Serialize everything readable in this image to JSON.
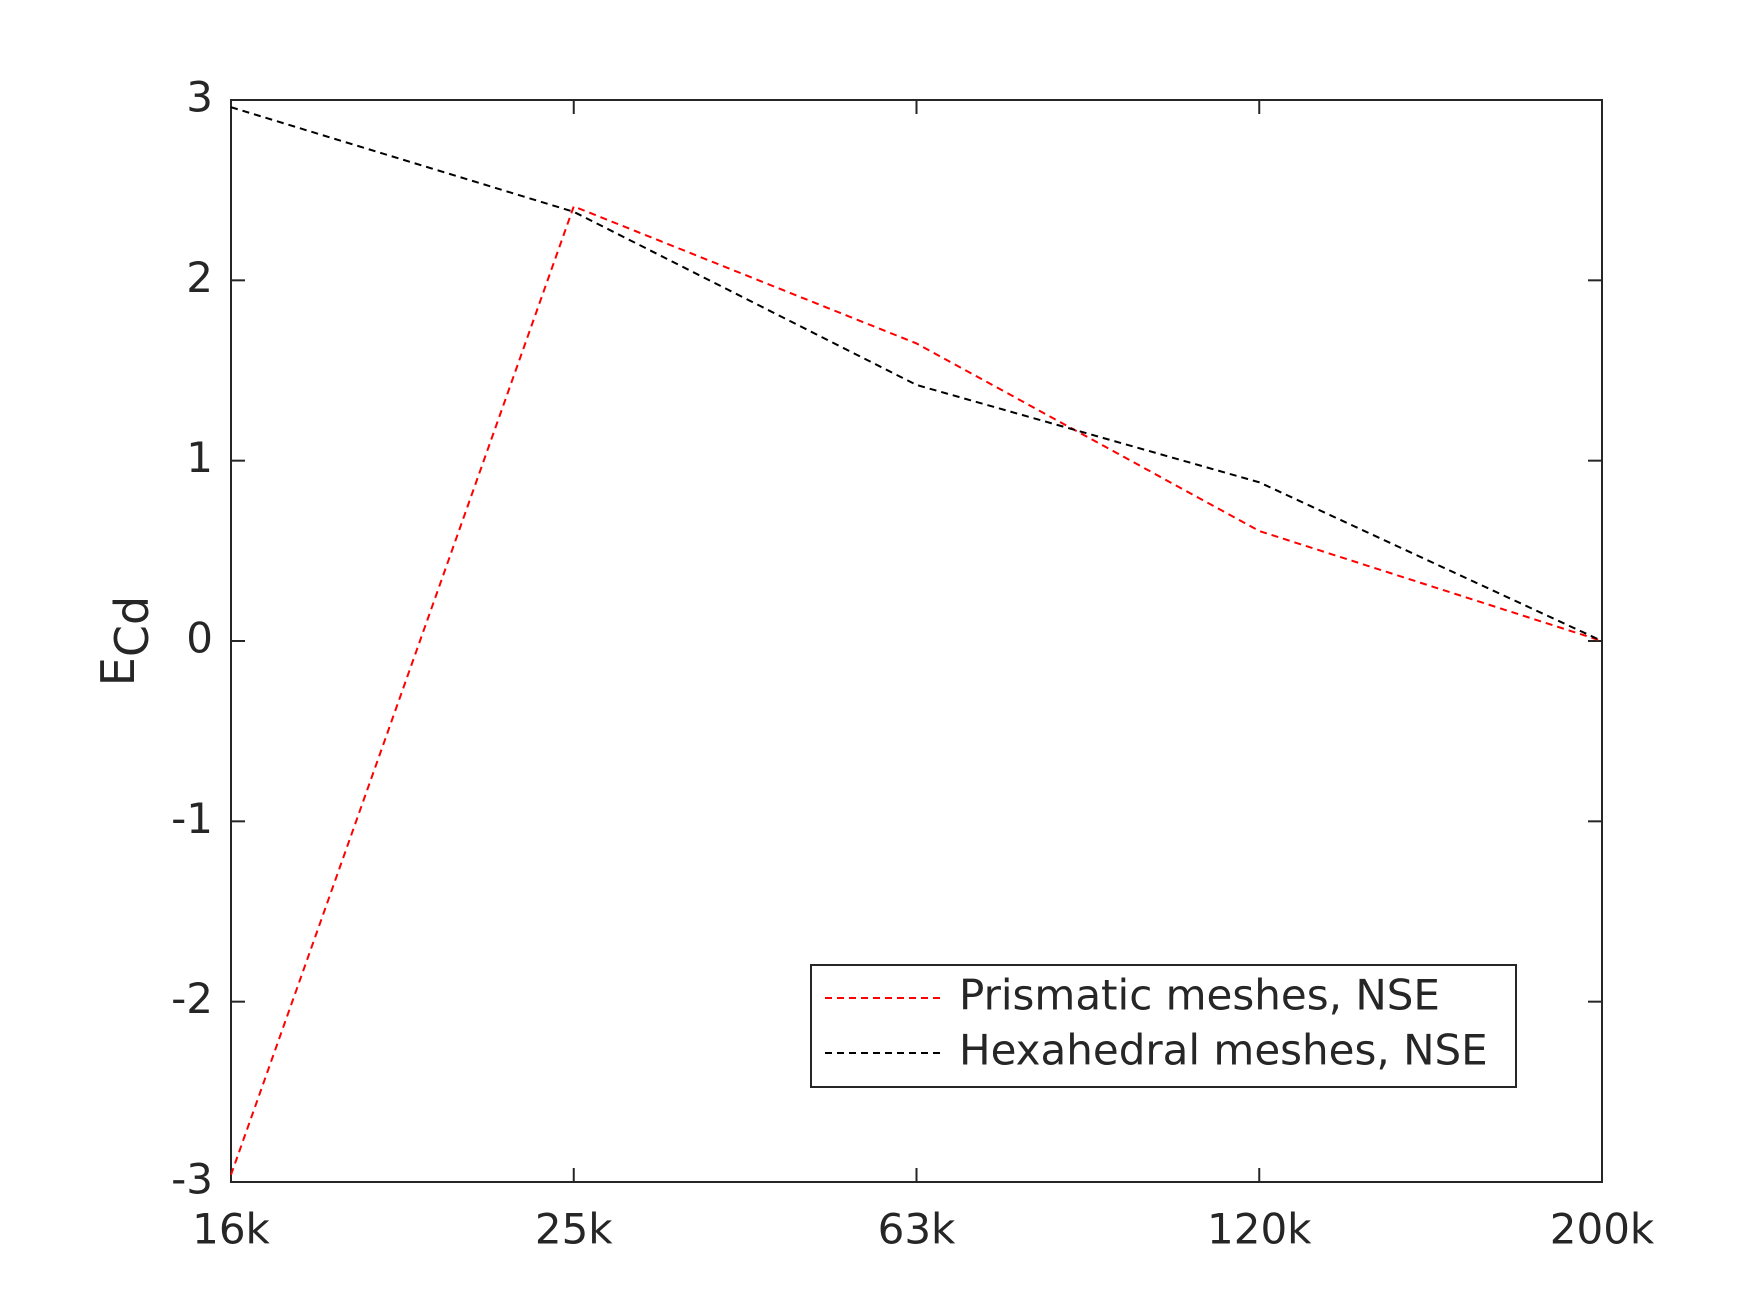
{
  "chart_data": {
    "type": "line",
    "ylabel": {
      "main": "E",
      "sub": "Cd"
    },
    "categories": [
      "16k",
      "25k",
      "63k",
      "120k",
      "200k"
    ],
    "series": [
      {
        "name": "Prismatic meshes, NSE",
        "color": "#ff0000",
        "values": [
          -2.96,
          2.41,
          1.65,
          0.61,
          0
        ]
      },
      {
        "name": "Hexahedral meshes, NSE",
        "color": "#000000",
        "values": [
          2.96,
          2.38,
          1.42,
          0.88,
          0
        ]
      }
    ],
    "ylim": [
      -3,
      3
    ],
    "yticks": [
      -3,
      -2,
      -1,
      0,
      1,
      2,
      3
    ],
    "grid": false,
    "legend": "lower right",
    "dashed": true
  }
}
